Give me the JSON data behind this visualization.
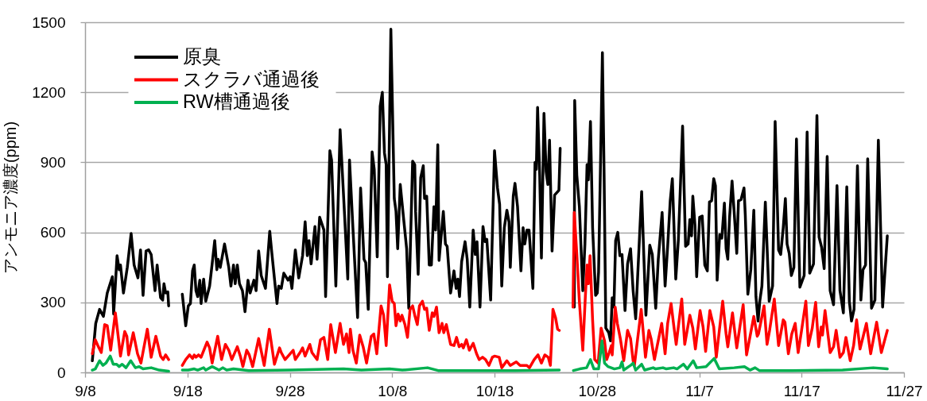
{
  "chart_data": {
    "type": "line",
    "ylabel": "アンモニア濃度(ppm)",
    "xlim": [
      "--09-08",
      "--11-27"
    ],
    "xticks": [
      {
        "value": "--09-08",
        "label": "9/8"
      },
      {
        "value": "--09-18",
        "label": "9/18"
      },
      {
        "value": "--09-28",
        "label": "9/28"
      },
      {
        "value": "--10-08",
        "label": "10/8"
      },
      {
        "value": "--10-18",
        "label": "10/18"
      },
      {
        "value": "--10-28",
        "label": "10/28"
      },
      {
        "value": "--11-07",
        "label": "11/7"
      },
      {
        "value": "--11-17",
        "label": "11/17"
      },
      {
        "value": "--11-27",
        "label": "11/27"
      }
    ],
    "ylim": [
      0,
      1500
    ],
    "yticks": [
      0,
      300,
      600,
      900,
      1200,
      1500
    ],
    "grid": "y",
    "legend": "top left",
    "series": [
      {
        "name": "原臭",
        "color": "#000000",
        "x": [
          "--09-08T17:00",
          "--09-09T01:00",
          "--09-09T10:00",
          "--09-09T19:00",
          "--09-10T04:00",
          "--09-10T16:00",
          "--09-10T19:00",
          "--09-11T03:00",
          "--09-11T08:00",
          "--09-11T11:00",
          "--09-11T18:00",
          "--09-12T03:00",
          "--09-12T12:00",
          "--09-12T19:00",
          "--09-13T04:00",
          "--09-13T10:00",
          "--09-13T16:00",
          "--09-13T23:00",
          "--09-14T05:00",
          "--09-14T11:00",
          "--09-14T20:00",
          "--09-15T01:00",
          "--09-15T09:00",
          "--09-15T14:00",
          "--09-15T17:00",
          "--09-15T21:00",
          "--09-16T02:00",
          "--09-16T04:00",
          "--09-17T00:00",
          "--09-17T12:00",
          "--09-17T20:00",
          "--09-18T02:00",
          "--09-18T07:00",
          "--09-18T12:00",
          "--09-18T16:00",
          "--09-18T20:00",
          "--09-19T00:00",
          "--09-19T05:00",
          "--09-19T08:00",
          "--09-19T14:00",
          "--09-19T19:00",
          "--09-20T04:00",
          "--09-20T10:00",
          "--09-20T16:00",
          "--09-20T21:00",
          "--09-21T00:00",
          "--09-21T05:00",
          "--09-21T15:00",
          "--09-22T01:00",
          "--09-22T06:00",
          "--09-22T12:00",
          "--09-22T16:00",
          "--09-22T21:00",
          "--09-23T02:00",
          "--09-23T09:00",
          "--09-23T15:00",
          "--09-23T22:00",
          "--09-24T03:00",
          "--09-24T12:00",
          "--09-24T17:00",
          "--09-24T23:00",
          "--09-25T05:00",
          "--09-25T15:00",
          "--09-26T01:00",
          "--09-26T06:00",
          "--09-26T18:00",
          "--09-26T22:00",
          "--09-27T04:00",
          "--09-27T10:00",
          "--09-27T20:00",
          "--09-28T01:00",
          "--09-28T05:00",
          "--09-28T13:00",
          "--09-28T21:00",
          "--09-29T06:00",
          "--09-29T12:00",
          "--09-29T17:00",
          "--09-29T21:00",
          "--09-30T02:00",
          "--09-30T11:00",
          "--09-30T16:00",
          "--09-30T22:00",
          "--10-01T08:00",
          "--10-01T12:00",
          "--10-01T22:00",
          "--10-02T02:00",
          "--10-02T12:00",
          "--10-02T22:00",
          "--10-03T08:00",
          "--10-03T16:00",
          "--10-03T20:00",
          "--10-04T04:00",
          "--10-04T15:00",
          "--10-04T22:00",
          "--10-05T06:00",
          "--10-05T10:00",
          "--10-05T16:00",
          "--10-06T01:00",
          "--10-06T06:00",
          "--10-06T13:00",
          "--10-06T20:00",
          "--10-07T01:00",
          "--10-07T06:00",
          "--10-07T10:00",
          "--10-07T13:00",
          "--10-07T21:00",
          "--10-08T05:00",
          "--10-08T09:00",
          "--10-08T13:00",
          "--10-08T19:00",
          "--10-09T02:00",
          "--10-09T10:00",
          "--10-09T15:00",
          "--10-10T00:00",
          "--10-10T05:00",
          "--10-10T07:00",
          "--10-10T13:00",
          "--10-10T19:00",
          "--10-11T01:00",
          "--10-11T04:00",
          "--10-11T09:00",
          "--10-11T15:00",
          "--10-11T20:00",
          "--10-12T02:00",
          "--10-12T06:00",
          "--10-12T11:00",
          "--10-12T14:00",
          "--10-13T00:00",
          "--10-13T05:00",
          "--10-13T09:00",
          "--10-13T17:00",
          "--10-14T01:00",
          "--10-14T06:00",
          "--10-14T10:00",
          "--10-14T14:00",
          "--10-14T19:00",
          "--10-15T03:00",
          "--10-15T08:00",
          "--10-15T14:00",
          "--10-15T22:00",
          "--10-16T03:00",
          "--10-16T07:00",
          "--10-16T14:00",
          "--10-16T21:00",
          "--10-17T02:00",
          "--10-17T06:00",
          "--10-17T15:00",
          "--10-18T00:00",
          "--10-18T07:00",
          "--10-18T12:00",
          "--10-18T17:00",
          "--10-18T23:00",
          "--10-19T05:00",
          "--10-19T10:00",
          "--10-19T13:00",
          "--10-19T20:00",
          "--10-20T00:00",
          "--10-20T06:00",
          "--10-20T14:00",
          "--10-20T19:00",
          "--10-20T23:00",
          "--10-21T04:00",
          "--10-21T09:00",
          "--10-21T18:00",
          "--10-21T23:00",
          "--10-22T02:00",
          "--10-22T05:00",
          "--10-22T10:00",
          "--10-22T14:00",
          "--10-22T20:00",
          "--10-23T01:00",
          "--10-23T05:00",
          "--10-23T09:00",
          "--10-23T15:00",
          "--10-23T21:00",
          "--10-24T07:00",
          "--10-24T10:00",
          "--10-25T00:00",
          "--10-25T19:00",
          "--10-25T20:00",
          "--10-26T01:00",
          "--10-26T07:00",
          "--10-26T15:00",
          "--10-26T20:00",
          "--10-27T01:00",
          "--10-27T04:00",
          "--10-27T09:00",
          "--10-27T14:00",
          "--10-27T21:00",
          "--10-28T01:00",
          "--10-28T04:00",
          "--10-28T09:00",
          "--10-28T13:00",
          "--10-28T17:00",
          "--10-28T21:00",
          "--10-29T04:00",
          "--10-29T08:00",
          "--10-29T12:00",
          "--10-29T16:00",
          "--10-29T20:00",
          "--10-30T01:00",
          "--10-30T06:00",
          "--10-30T11:00",
          "--10-30T18:00",
          "--10-31T00:00",
          "--10-31T07:00",
          "--10-31T13:00",
          "--10-31T19:00",
          "--11-01T09:00",
          "--11-01T14:00",
          "--11-01T19:00",
          "--11-02T04:00",
          "--11-02T10:00",
          "--11-02T18:00",
          "--11-03T00:00",
          "--11-03T09:00",
          "--11-03T16:00",
          "--11-03T22:00",
          "--11-04T04:00",
          "--11-04T09:00",
          "--11-04T17:00",
          "--11-04T23:00",
          "--11-05T03:00",
          "--11-05T09:00",
          "--11-05T13:00",
          "--11-05T16:00",
          "--11-05T22:00",
          "--11-06T02:00",
          "--11-06T06:00",
          "--11-06T09:00",
          "--11-06T14:00",
          "--11-06T18:00",
          "--11-07T01:00",
          "--11-07T07:00",
          "--11-07T13:00",
          "--11-07T19:00",
          "--11-08T00:00",
          "--11-08T05:00",
          "--11-08T10:00",
          "--11-08T14:00",
          "--11-08T18:00",
          "--11-09T00:00",
          "--11-09T05:00",
          "--11-09T11:00",
          "--11-09T15:00",
          "--11-09T19:00",
          "--11-09T23:00",
          "--11-10T05:00",
          "--11-10T12:00",
          "--11-10T16:00",
          "--11-10T20:00",
          "--11-11T02:00",
          "--11-11T09:00",
          "--11-11T12:00",
          "--11-11T18:00",
          "--11-12T01:00",
          "--11-12T08:00",
          "--11-12T13:00",
          "--11-12T18:00",
          "--11-12T22:00",
          "--11-13T03:00",
          "--11-13T11:00",
          "--11-13T20:00",
          "--11-14T04:00",
          "--11-14T10:00",
          "--11-14T18:00",
          "--11-14T23:00",
          "--11-15T05:00",
          "--11-15T10:00",
          "--11-15T14:00",
          "--11-15T19:00",
          "--11-16T00:00",
          "--11-16T06:00",
          "--11-16T12:00",
          "--11-16T20:00",
          "--11-17T06:00",
          "--11-17T13:00",
          "--11-17T19:00",
          "--11-18T04:00",
          "--11-18T12:00",
          "--11-18T17:00",
          "--11-18T23:00",
          "--11-19T05:00",
          "--11-19T12:00",
          "--11-19T19:00",
          "--11-20T03:00",
          "--11-20T11:00",
          "--11-20T18:00",
          "--11-21T02:00",
          "--11-21T10:00",
          "--11-21T16:00",
          "--11-21T21:00",
          "--11-22T03:00",
          "--11-22T11:00",
          "--11-22T19:00",
          "--11-23T00:00",
          "--11-23T06:00",
          "--11-23T11:00",
          "--11-23T20:00",
          "--11-24T04:00",
          "--11-24T12:00",
          "--11-24T22:00",
          "--11-25T09:00"
        ],
        "values": [
          50,
          210,
          270,
          240,
          340,
          410,
          250,
          500,
          440,
          460,
          340,
          450,
          595,
          460,
          405,
          525,
          330,
          520,
          525,
          505,
          350,
          460,
          320,
          310,
          380,
          340,
          345,
          285,
          null,
          335,
          200,
          285,
          295,
          435,
          460,
          350,
          325,
          395,
          295,
          400,
          305,
          370,
          465,
          565,
          440,
          485,
          450,
          550,
          450,
          370,
          460,
          380,
          460,
          380,
          350,
          260,
          395,
          340,
          395,
          350,
          520,
          415,
          360,
          605,
          510,
          295,
          370,
          360,
          425,
          395,
          410,
          360,
          525,
          405,
          500,
          645,
          500,
          565,
          465,
          625,
          485,
          665,
          610,
          325,
          950,
          910,
          370,
          1040,
          690,
          400,
          910,
          620,
          235,
          790,
          485,
          470,
          270,
          945,
          870,
          495,
          1140,
          1200,
          940,
          890,
          410,
          1470,
          745,
          690,
          530,
          805,
          675,
          530,
          275,
          905,
          890,
          690,
          420,
          835,
          885,
          745,
          755,
          460,
          460,
          710,
          610,
          975,
          480,
          690,
          550,
          540,
          340,
          435,
          360,
          400,
          325,
          475,
          560,
          485,
          280,
          610,
          505,
          560,
          280,
          625,
          560,
          570,
          310,
          950,
          790,
          720,
          370,
          620,
          695,
          645,
          450,
          755,
          810,
          710,
          435,
          620,
          550,
          610,
          610,
          360,
          900,
          870,
          1135,
          845,
          490,
          1110,
          860,
          805,
          995,
          520,
          760,
          780,
          960,
          null,
          280,
          1165,
          845,
          710,
          350,
          550,
          890,
          825,
          1075,
          620,
          330,
          340,
          430,
          940,
          1370,
          845,
          190,
          170,
          135,
          320,
          280,
          565,
          600,
          500,
          505,
          265,
          465,
          530,
          350,
          230,
          775,
          505,
          245,
          545,
          505,
          275,
          485,
          685,
          370,
          540,
          735,
          830,
          400,
          565,
          755,
          1055,
          755,
          540,
          550,
          655,
          585,
          755,
          630,
          410,
          665,
          670,
          460,
          435,
          730,
          735,
          830,
          800,
          395,
          590,
          575,
          725,
          530,
          485,
          660,
          820,
          630,
          510,
          735,
          740,
          790,
          675,
          335,
          440,
          695,
          325,
          220,
          305,
          370,
          730,
          305,
          370,
          1075,
          525,
          505,
          620,
          745,
          550,
          510,
          415,
          450,
          1000,
          365,
          415,
          1030,
          425,
          465,
          1100,
          580,
          535,
          445,
          925,
          350,
          290,
          800,
          350,
          255,
          795,
          305,
          220,
          270,
          885,
          310,
          440,
          460,
          915,
          275,
          310,
          995,
          280,
          585
        ]
      },
      {
        "name": "スクラバ通過後",
        "color": "#ff0000",
        "x": [
          "--09-08T17:00",
          "--09-09T00:00",
          "--09-09T06:00",
          "--09-09T14:00",
          "--09-09T22:00",
          "--09-10T04:00",
          "--09-10T12:00",
          "--09-10T23:00",
          "--09-11T05:00",
          "--09-11T11:00",
          "--09-11T21:00",
          "--09-12T02:00",
          "--09-12T06:00",
          "--09-12T17:00",
          "--09-13T03:00",
          "--09-13T11:00",
          "--09-14T02:00",
          "--09-14T11:00",
          "--09-14T22:00",
          "--09-15T09:00",
          "--09-15T15:00",
          "--09-15T21:00",
          "--09-16T04:00",
          "--09-17T00:00",
          "--09-17T12:00",
          "--09-17T20:00",
          "--09-18T05:00",
          "--09-18T12:00",
          "--09-18T16:00",
          "--09-18T20:00",
          "--09-19T02:00",
          "--09-19T08:00",
          "--09-19T22:00",
          "--09-20T04:00",
          "--09-20T10:00",
          "--09-20T23:00",
          "--09-21T08:00",
          "--09-21T17:00",
          "--09-22T01:00",
          "--09-22T08:00",
          "--09-22T21:00",
          "--09-23T04:00",
          "--09-23T10:00",
          "--09-23T19:00",
          "--09-24T01:00",
          "--09-24T09:00",
          "--09-24T23:00",
          "--09-25T12:00",
          "--09-26T00:00",
          "--09-26T12:00",
          "--09-27T00:00",
          "--09-27T04:00",
          "--09-27T13:00",
          "--09-28T08:00",
          "--09-28T13:00",
          "--09-29T00:00",
          "--09-29T06:00",
          "--09-29T12:00",
          "--09-29T23:00",
          "--09-30T04:00",
          "--09-30T16:00",
          "--10-01T00:00",
          "--10-01T08:00",
          "--10-01T17:00",
          "--10-02T00:00",
          "--10-02T11:00",
          "--10-02T22:00",
          "--10-03T06:00",
          "--10-03T13:00",
          "--10-03T19:00",
          "--10-03T22:00",
          "--10-04T04:00",
          "--10-04T12:00",
          "--10-04T20:00",
          "--10-05T04:00",
          "--10-05T12:00",
          "--10-05T23:00",
          "--10-06T05:00",
          "--10-06T12:00",
          "--10-06T22:00",
          "--10-07T04:00",
          "--10-07T10:00",
          "--10-07T18:00",
          "--10-08T00:00",
          "--10-08T05:00",
          "--10-08T09:00",
          "--10-08T14:00",
          "--10-08T19:00",
          "--10-08T23:00",
          "--10-09T06:00",
          "--10-09T12:00",
          "--10-09T18:00",
          "--10-10T00:00",
          "--10-10T05:00",
          "--10-10T11:00",
          "--10-10T16:00",
          "--10-10T23:00",
          "--10-11T04:00",
          "--10-11T09:00",
          "--10-11T15:00",
          "--10-11T22:00",
          "--10-12T02:00",
          "--10-12T08:00",
          "--10-12T14:00",
          "--10-12T21:00",
          "--10-13T01:00",
          "--10-13T07:00",
          "--10-13T17:00",
          "--10-14T01:00",
          "--10-14T07:00",
          "--10-14T13:00",
          "--10-14T19:00",
          "--10-14T23:00",
          "--10-15T06:00",
          "--10-15T13:00",
          "--10-15T22:00",
          "--10-16T06:00",
          "--10-16T12:00",
          "--10-16T20:00",
          "--10-17T03:00",
          "--10-17T11:00",
          "--10-17T19:00",
          "--10-18T00:00",
          "--10-18T11:00",
          "--10-18T17:00",
          "--10-19T05:00",
          "--10-19T13:00",
          "--10-20T03:00",
          "--10-20T12:00",
          "--10-21T04:00",
          "--10-21T10:00",
          "--10-21T21:00",
          "--10-22T06:00",
          "--10-22T14:00",
          "--10-22T22:00",
          "--10-23T06:00",
          "--10-23T11:00",
          "--10-23T17:00",
          "--10-23T23:00",
          "--10-24T04:00",
          "--10-24T08:00",
          "--10-25T00:00",
          "--10-25T16:00",
          "--10-25T19:00",
          "--10-26T01:00",
          "--10-26T07:00",
          "--10-26T15:00",
          "--10-26T21:00",
          "--10-27T01:00",
          "--10-27T04:00",
          "--10-27T08:00",
          "--10-27T14:00",
          "--10-27T19:00",
          "--10-28T03:00",
          "--10-28T10:00",
          "--10-28T18:00",
          "--10-28T23:00",
          "--10-29T05:00",
          "--10-29T10:00",
          "--10-29T12:00",
          "--10-29T19:00",
          "--10-30T00:00",
          "--10-30T07:00",
          "--10-30T15:00",
          "--10-31T00:00",
          "--10-31T07:00",
          "--10-31T13:00",
          "--10-31T16:00",
          "--11-01T08:00",
          "--11-01T18:00",
          "--11-02T02:00",
          "--11-02T07:00",
          "--11-02T15:00",
          "--11-03T08:00",
          "--11-03T16:00",
          "--11-03T22:00",
          "--11-04T06:00",
          "--11-04T12:00",
          "--11-04T18:00",
          "--11-05T07:00",
          "--11-05T14:00",
          "--11-06T02:00",
          "--11-06T09:00",
          "--11-06T15:00",
          "--11-07T02:00",
          "--11-07T09:00",
          "--11-07T15:00",
          "--11-08T01:00",
          "--11-08T10:00",
          "--11-08T16:00",
          "--11-09T07:00",
          "--11-09T15:00",
          "--11-09T19:00",
          "--11-10T06:00",
          "--11-10T16:00",
          "--11-11T07:00",
          "--11-11T15:00",
          "--11-12T08:00",
          "--11-12T16:00",
          "--11-12T19:00",
          "--11-13T08:00",
          "--11-13T15:00",
          "--11-13T21:00",
          "--11-14T08:00",
          "--11-14T18:00",
          "--11-15T05:00",
          "--11-15T09:00",
          "--11-15T17:00",
          "--11-16T01:00",
          "--11-16T09:00",
          "--11-16T16:00",
          "--11-17T00:00",
          "--11-17T10:00",
          "--11-17T16:00",
          "--11-18T01:00",
          "--11-18T09:00",
          "--11-18T16:00",
          "--11-18T22:00",
          "--11-19T01:00",
          "--11-19T07:00",
          "--11-19T19:00",
          "--11-20T03:00",
          "--11-20T09:00",
          "--11-20T18:00",
          "--11-21T02:00",
          "--11-21T08:00",
          "--11-21T18:00",
          "--11-22T02:00",
          "--11-22T09:00",
          "--11-22T17:00",
          "--11-23T08:00",
          "--11-23T18:00",
          "--11-24T08:00",
          "--11-24T19:00",
          "--11-25T09:00"
        ],
        "values": [
          80,
          140,
          115,
          85,
          205,
          200,
          95,
          255,
          165,
          70,
          175,
          155,
          75,
          170,
          80,
          40,
          185,
          65,
          155,
          70,
          55,
          75,
          55,
          null,
          30,
          55,
          75,
          60,
          75,
          65,
          75,
          65,
          130,
          105,
          40,
          155,
          55,
          120,
          95,
          55,
          110,
          70,
          25,
          95,
          75,
          25,
          145,
          30,
          185,
          35,
          105,
          85,
          55,
          95,
          55,
          85,
          105,
          70,
          120,
          85,
          55,
          140,
          150,
          55,
          205,
          85,
          210,
          120,
          165,
          85,
          185,
          95,
          40,
          160,
          110,
          40,
          155,
          165,
          80,
          285,
          245,
          115,
          375,
          305,
          295,
          200,
          250,
          220,
          245,
          205,
          150,
          270,
          285,
          245,
          205,
          285,
          305,
          270,
          275,
          180,
          255,
          240,
          280,
          170,
          210,
          170,
          205,
          120,
          115,
          150,
          110,
          120,
          105,
          140,
          95,
          125,
          80,
          55,
          65,
          55,
          30,
          65,
          70,
          65,
          20,
          50,
          30,
          45,
          30,
          30,
          20,
          55,
          75,
          40,
          75,
          65,
          30,
          270,
          235,
          185,
          180,
          null,
          280,
          685,
          505,
          305,
          95,
          325,
          460,
          380,
          500,
          225,
          55,
          40,
          190,
          135,
          55,
          85,
          115,
          75,
          280,
          210,
          145,
          50,
          180,
          145,
          50,
          30,
          270,
          65,
          180,
          145,
          55,
          210,
          80,
          210,
          295,
          205,
          120,
          315,
          120,
          245,
          190,
          100,
          265,
          195,
          90,
          265,
          195,
          65,
          305,
          165,
          110,
          255,
          105,
          290,
          75,
          240,
          155,
          165,
          285,
          120,
          180,
          315,
          115,
          225,
          215,
          80,
          165,
          210,
          85,
          180,
          305,
          115,
          190,
          300,
          110,
          195,
          160,
          265,
          85,
          110,
          180,
          65,
          85,
          150,
          50,
          115,
          225,
          100,
          210,
          80,
          215,
          85,
          180
        ]
      },
      {
        "name": "RW槽通過後",
        "color": "#00b050",
        "x": [
          "--09-08T17:00",
          "--09-09T00:00",
          "--09-09T10:00",
          "--09-09T18:00",
          "--09-10T01:00",
          "--09-10T11:00",
          "--09-10T18:00",
          "--09-11T02:00",
          "--09-11T08:00",
          "--09-11T15:00",
          "--09-12T00:00",
          "--09-12T11:00",
          "--09-12T22:00",
          "--09-13T07:00",
          "--09-13T16:00",
          "--09-14T11:00",
          "--09-15T06:00",
          "--09-16T04:00",
          "--09-17T00:00",
          "--09-17T12:00",
          "--09-18T02:00",
          "--09-18T16:00",
          "--09-19T00:00",
          "--09-19T14:00",
          "--09-19T19:00",
          "--09-20T10:00",
          "--09-21T02:00",
          "--09-21T11:00",
          "--09-21T20:00",
          "--09-22T12:00",
          "--09-24T00:00",
          "--09-28T00:00",
          "--10-03T06:00",
          "--10-05T00:00",
          "--10-07T18:00",
          "--10-09T00:00",
          "--10-11T11:00",
          "--10-12T12:00",
          "--10-16T00:00",
          "--10-20T00:00",
          "--10-24T08:00",
          "--10-25T00:00",
          "--10-25T17:00",
          "--10-26T08:00",
          "--10-27T00:00",
          "--10-27T09:00",
          "--10-27T17:00",
          "--10-28T04:00",
          "--10-28T12:00",
          "--10-28T18:00",
          "--10-29T02:00",
          "--10-29T17:00",
          "--10-30T06:00",
          "--10-30T11:00",
          "--10-30T15:00",
          "--10-31T07:00",
          "--10-31T13:00",
          "--10-31T19:00",
          "--11-01T09:00",
          "--11-01T16:00",
          "--11-02T12:00",
          "--11-02T18:00",
          "--11-03T11:00",
          "--11-03T19:00",
          "--11-04T12:00",
          "--11-04T20:00",
          "--11-05T11:00",
          "--11-05T20:00",
          "--11-06T10:00",
          "--11-06T18:00",
          "--11-07T16:00",
          "--11-08T11:00",
          "--11-08T23:00",
          "--11-10T10:00",
          "--11-11T10:00",
          "--11-11T23:00",
          "--11-12T11:00",
          "--11-12T21:00",
          "--11-16T00:00",
          "--11-21T00:00",
          "--11-24T00:00",
          "--11-25T09:00"
        ],
        "values": [
          10,
          15,
          50,
          30,
          40,
          70,
          35,
          35,
          25,
          35,
          20,
          50,
          20,
          25,
          15,
          20,
          10,
          5,
          null,
          10,
          10,
          15,
          10,
          20,
          10,
          25,
          10,
          20,
          10,
          15,
          8,
          10,
          15,
          10,
          15,
          10,
          20,
          8,
          8,
          8,
          10,
          null,
          8,
          15,
          20,
          55,
          15,
          15,
          135,
          40,
          25,
          15,
          20,
          45,
          10,
          30,
          40,
          10,
          35,
          10,
          20,
          15,
          20,
          15,
          20,
          15,
          35,
          15,
          50,
          20,
          25,
          60,
          15,
          20,
          25,
          10,
          20,
          8,
          8,
          10,
          20,
          15
        ]
      }
    ]
  }
}
